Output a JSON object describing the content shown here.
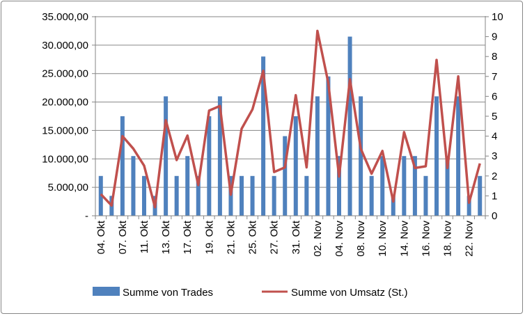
{
  "chart_data": {
    "type": "bar+line",
    "title": "",
    "categories": [
      "04. Okt",
      "",
      "07. Okt",
      "",
      "11. Okt",
      "",
      "13. Okt",
      "",
      "17. Okt",
      "",
      "19. Okt",
      "",
      "21. Okt",
      "",
      "25. Okt",
      "",
      "27. Okt",
      "",
      "31. Okt",
      "",
      "02. Nov",
      "",
      "04. Nov",
      "",
      "08. Nov",
      "",
      "10. Nov",
      "",
      "14. Nov",
      "",
      "16. Nov",
      "",
      "18. Nov",
      "",
      "22. Nov",
      ""
    ],
    "series": [
      {
        "name": "Summe von Trades",
        "type": "bar",
        "axis": "right",
        "color": "#4F81BD",
        "values": [
          2,
          1,
          5,
          3,
          2,
          1,
          6,
          2,
          3,
          2,
          5,
          6,
          2,
          2,
          2,
          8,
          2,
          4,
          5,
          2,
          6,
          7,
          3,
          9,
          6,
          2,
          3,
          1,
          3,
          3,
          2,
          6,
          3,
          6,
          1,
          2
        ]
      },
      {
        "name": "Summe von Umsatz (St.)",
        "type": "line",
        "axis": "left",
        "color": "#C0504D",
        "values": [
          3800,
          1800,
          14000,
          11800,
          8800,
          1500,
          16800,
          9800,
          14100,
          5400,
          18500,
          19300,
          3700,
          15300,
          18700,
          25500,
          7700,
          8500,
          21200,
          8500,
          32500,
          23400,
          6900,
          24000,
          11800,
          7400,
          11400,
          2500,
          14700,
          8400,
          8700,
          27400,
          8400,
          24500,
          2300,
          9200
        ]
      }
    ],
    "left_axis": {
      "min": 0,
      "max": 35000,
      "step": 5000,
      "tick_labels": [
        "-",
        "5.000,00",
        "10.000,00",
        "15.000,00",
        "20.000,00",
        "25.000,00",
        "30.000,00",
        "35.000,00"
      ]
    },
    "right_axis": {
      "min": 0,
      "max": 10,
      "step": 1,
      "tick_labels": [
        "0",
        "1",
        "2",
        "3",
        "4",
        "5",
        "6",
        "7",
        "8",
        "9",
        "10"
      ]
    },
    "grid": true,
    "legend": "bottom"
  }
}
